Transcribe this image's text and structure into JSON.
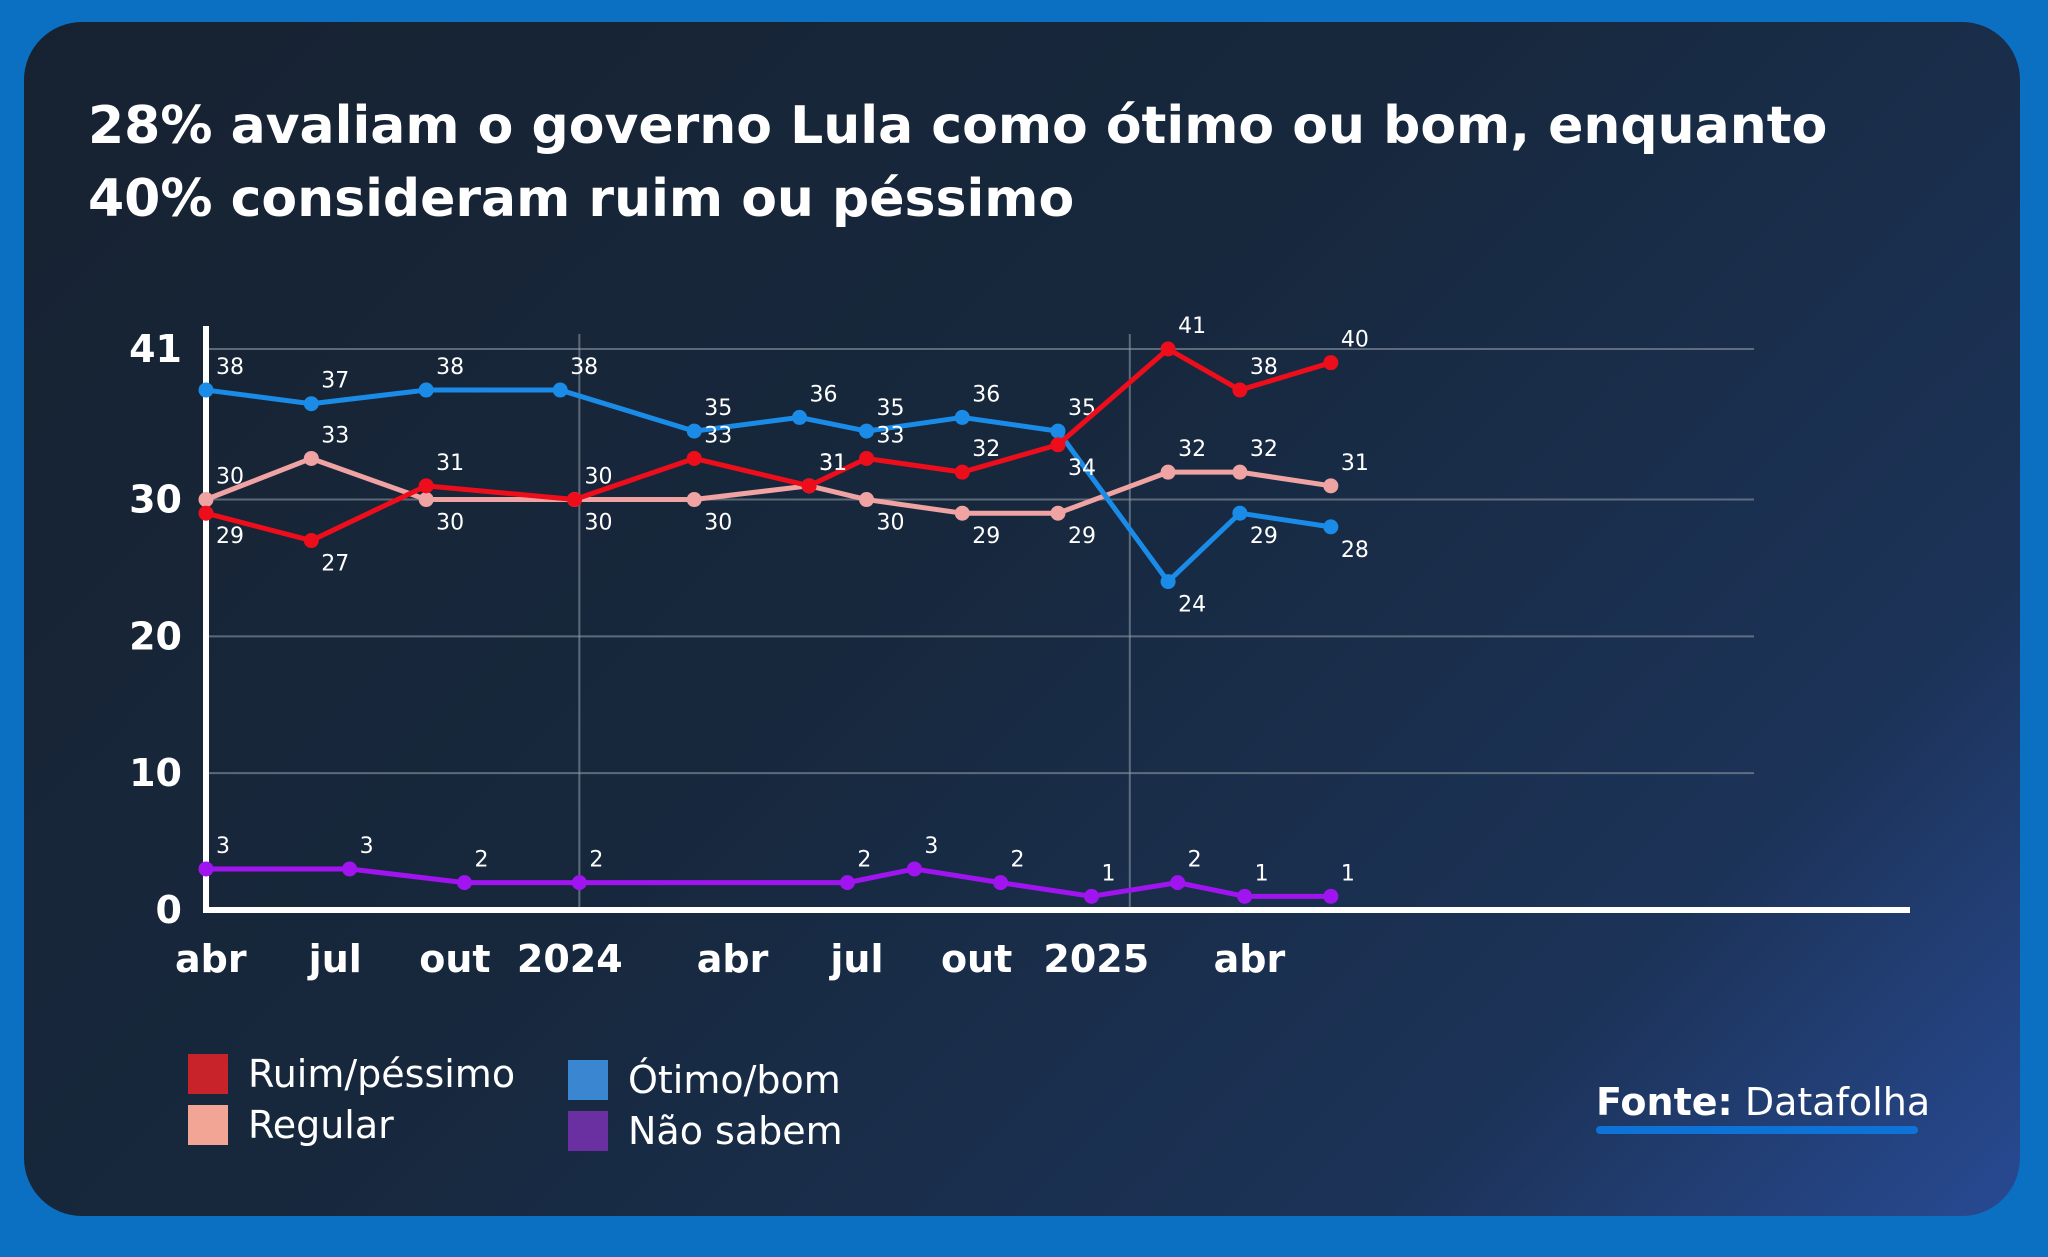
{
  "title": "28% avaliam o governo Lula como ótimo ou bom, enquanto 40% consideram ruim ou péssimo",
  "source": {
    "label": "Fonte:",
    "name": "Datafolha"
  },
  "chart_data": {
    "type": "line",
    "title": "28% avaliam o governo Lula como ótimo ou bom, enquanto 40% consideram ruim ou péssimo",
    "xlabel": "",
    "ylabel": "",
    "ylim": [
      0,
      41
    ],
    "y_ticks": [
      0,
      10,
      20,
      30,
      41
    ],
    "x_ticks": [
      {
        "label": "abr",
        "pos": 0.05
      },
      {
        "label": "jul",
        "pos": 1.35
      },
      {
        "label": "out",
        "pos": 2.6
      },
      {
        "label": "2024",
        "pos": 3.8
      },
      {
        "label": "abr",
        "pos": 5.5
      },
      {
        "label": "jul",
        "pos": 6.8
      },
      {
        "label": "out",
        "pos": 8.05
      },
      {
        "label": "2025",
        "pos": 9.3
      },
      {
        "label": "abr",
        "pos": 10.9
      }
    ],
    "year_lines": [
      3.9,
      9.65
    ],
    "grid": true,
    "legend_position": "bottom-left",
    "x_range": [
      0,
      17.8
    ],
    "series": [
      {
        "name": "Ótimo/bom",
        "color": "#1a8ce8",
        "legend_color": "#3a86d0",
        "x": [
          0,
          1.1,
          2.3,
          3.7,
          5.1,
          6.2,
          6.9,
          7.9,
          8.9,
          10.05,
          10.8,
          11.75
        ],
        "values": [
          38,
          37,
          38,
          38,
          35,
          36,
          35,
          36,
          35,
          24,
          29,
          28
        ]
      },
      {
        "name": "Ruim/péssimo",
        "color": "#ee0e1b",
        "legend_color": "#c8232b",
        "x": [
          0,
          1.1,
          2.3,
          3.85,
          5.1,
          6.3,
          6.9,
          7.9,
          8.9,
          10.05,
          10.8,
          11.75
        ],
        "values": [
          29,
          27,
          31,
          30,
          33,
          31,
          33,
          32,
          34,
          41,
          38,
          40
        ]
      },
      {
        "name": "Regular",
        "color": "#f0a3a3",
        "legend_color": "#f2a595",
        "x": [
          0,
          1.1,
          2.3,
          3.85,
          5.1,
          6.3,
          6.9,
          7.9,
          8.9,
          10.05,
          10.8,
          11.75
        ],
        "values": [
          30,
          33,
          30,
          30,
          30,
          31,
          30,
          29,
          29,
          32,
          32,
          31
        ]
      },
      {
        "name": "Não sabem",
        "color": "#a014f0",
        "legend_color": "#6a2fa0",
        "x": [
          0,
          1.5,
          2.7,
          3.9,
          6.7,
          7.4,
          8.3,
          9.25,
          10.15,
          10.85,
          11.75
        ],
        "values": [
          3,
          3,
          2,
          2,
          2,
          3,
          2,
          1,
          2,
          1,
          1
        ]
      }
    ]
  }
}
